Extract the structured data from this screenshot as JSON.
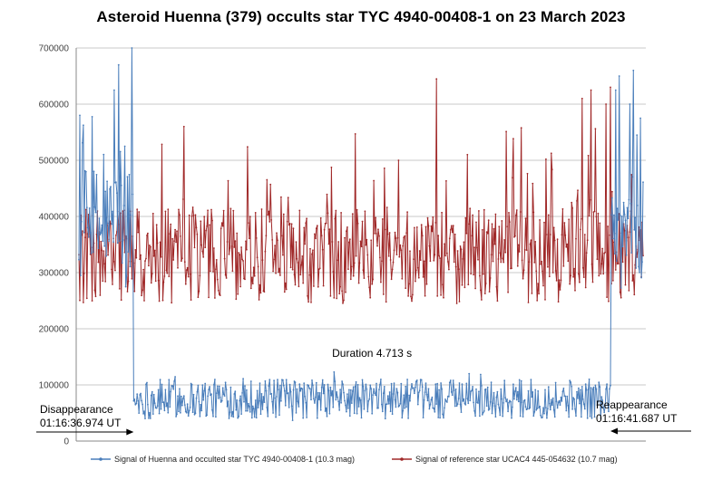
{
  "chart_data": {
    "type": "line",
    "title": "Asteroid Huenna (379) occults star TYC 4940-00408-1 on 23 March 2023",
    "xlabel": "",
    "ylabel": "",
    "ylim": [
      0,
      700000
    ],
    "yticks": [
      0,
      100000,
      200000,
      300000,
      400000,
      500000,
      600000,
      700000
    ],
    "ytick_labels": [
      "0",
      "100000",
      "200000",
      "300000",
      "400000",
      "500000",
      "600000",
      "700000"
    ],
    "grid": true,
    "legend_position": "bottom",
    "frames": 640,
    "event": {
      "disappear_frame": 62,
      "reappear_frame": 602
    },
    "series": [
      {
        "name": "Signal of Huenna and occulted star TYC 4940-00408-1 (10.3 mag)",
        "color": "#4a7ebb",
        "approximate": true,
        "baseline_out_of_event": 380000,
        "baseline_in_event": 75000,
        "peaks": [
          [
            1,
            580000
          ],
          [
            40,
            625000
          ],
          [
            45,
            670000
          ],
          [
            60,
            700000
          ],
          [
            52,
            525000
          ],
          [
            608,
            625000
          ],
          [
            612,
            650000
          ],
          [
            628,
            660000
          ],
          [
            624,
            600000
          ],
          [
            632,
            545000
          ],
          [
            636,
            575000
          ]
        ]
      },
      {
        "name": "Signal of reference star UCAC4 445-054632 (10.7 mag)",
        "color": "#a02828",
        "approximate": true,
        "baseline": 330000,
        "peaks": [
          [
            119,
            560000
          ],
          [
            405,
            645000
          ],
          [
            570,
            610000
          ],
          [
            580,
            625000
          ],
          [
            597,
            600000
          ],
          [
            602,
            630000
          ],
          [
            440,
            510000
          ],
          [
            362,
            500000
          ]
        ]
      }
    ],
    "annotations": {
      "duration": "Duration 4.713 s",
      "disappearance_label": "Disappearance",
      "disappearance_time": "01:16:36.974 UT",
      "reappearance_label": "Reappearance",
      "reappearance_time": "01:16:41.687 UT"
    }
  }
}
